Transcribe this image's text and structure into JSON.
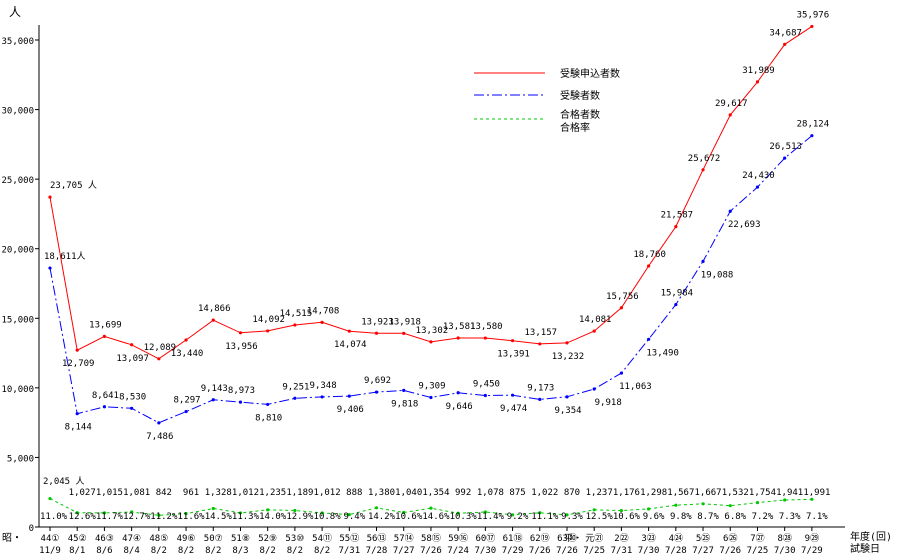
{
  "chart_data": {
    "type": "line",
    "title": "",
    "y_unit": "人",
    "ylim": [
      0,
      35000
    ],
    "yticks": [
      "0",
      "5,000",
      "10,000",
      "15,000",
      "20,000",
      "25,000",
      "30,000",
      "35,000"
    ],
    "ytick_values": [
      0,
      5000,
      10000,
      15000,
      20000,
      25000,
      30000,
      35000
    ],
    "xlabel_top": "年度(回)",
    "xlabel_bottom": "試験日",
    "era_showa": "昭・",
    "era_heisei": "平・",
    "years": [
      "44①",
      "45②",
      "46③",
      "47④",
      "48⑤",
      "49⑥",
      "50⑦",
      "51⑧",
      "52⑨",
      "53⑩",
      "54⑪",
      "55⑫",
      "56⑬",
      "57⑭",
      "58⑮",
      "59⑯",
      "60⑰",
      "61⑱",
      "62⑲",
      "63⑳",
      "元㉑",
      "2㉒",
      "3㉓",
      "4㉔",
      "5㉕",
      "6㉖",
      "7㉗",
      "8㉘",
      "9㉙"
    ],
    "dates": [
      "11/9",
      "8/1",
      "8/6",
      "8/4",
      "8/2",
      "8/2",
      "8/2",
      "8/3",
      "8/2",
      "8/2",
      "8/2",
      "7/31",
      "7/28",
      "7/27",
      "7/26",
      "7/24",
      "7/30",
      "7/29",
      "7/26",
      "7/26",
      "7/25",
      "7/31",
      "7/30",
      "7/28",
      "7/27",
      "7/26",
      "7/25",
      "7/30",
      "7/29"
    ],
    "legend": [
      "受験申込者数",
      "受験者数",
      "合格者数",
      "合格率"
    ],
    "colors": {
      "applicants": "#ff0000",
      "examinees": "#0000ff",
      "passers": "#00c800"
    },
    "series": [
      {
        "name": "受験申込者数",
        "values": [
          23705,
          12709,
          13699,
          13097,
          12089,
          13440,
          14866,
          13956,
          14092,
          14515,
          14708,
          14074,
          13923,
          13918,
          13302,
          13581,
          13580,
          13391,
          13157,
          13232,
          14081,
          15756,
          18760,
          21587,
          25672,
          29617,
          31989,
          34687,
          35976
        ],
        "labels": [
          "23,705 人",
          "12,709",
          "13,699",
          "13,097",
          "12,089",
          "13,440",
          "14,866",
          "13,956",
          "14,092",
          "14,515",
          "14,708",
          "14,074",
          "13,923",
          "13,918",
          "13,302",
          "13,581",
          "13,580",
          "13,391",
          "13,157",
          "13,232",
          "14,081",
          "15,756",
          "18,760",
          "21,587",
          "25,672",
          "29,617",
          "31,989",
          "34,687",
          "35,976"
        ]
      },
      {
        "name": "受験者数",
        "values": [
          18611,
          8144,
          8641,
          8530,
          7486,
          8297,
          9143,
          8973,
          8810,
          9251,
          9348,
          9406,
          9692,
          9818,
          9309,
          9646,
          9450,
          9474,
          9173,
          9354,
          9918,
          11063,
          13490,
          15984,
          19088,
          22693,
          24430,
          26513,
          28124
        ],
        "labels": [
          "18,611人",
          "8,144",
          "8,641",
          "8,530",
          "7,486",
          "8,297",
          "9,143",
          "8,973",
          "8,810",
          "9,251",
          "9,348",
          "9,406",
          "9,692",
          "9,818",
          "9,309",
          "9,646",
          "9,450",
          "9,474",
          "9,173",
          "9,354",
          "9,918",
          "11,063",
          "13,490",
          "15,984",
          "19,088",
          "22,693",
          "24,430",
          "26,513",
          "28,124"
        ]
      },
      {
        "name": "合格者数",
        "values": [
          2045,
          1027,
          1015,
          1081,
          842,
          961,
          1328,
          1012,
          1235,
          1189,
          1012,
          888,
          1380,
          1040,
          1354,
          992,
          1078,
          875,
          1022,
          870,
          1237,
          1176,
          1298,
          1567,
          1667,
          1532,
          1754,
          1941,
          1991
        ],
        "labels": [
          "2,045 人",
          "1,027",
          "1,015",
          "1,081",
          "842",
          "961",
          "1,328",
          "1,012",
          "1,235",
          "1,189",
          "1,012",
          "888",
          "1,380",
          "1,040",
          "1,354",
          "992",
          "1,078",
          "875",
          "1,022",
          "870",
          "1,237",
          "1,176",
          "1,298",
          "1,567",
          "1,667",
          "1,532",
          "1,754",
          "1,941",
          "1,991"
        ]
      },
      {
        "name": "合格率",
        "values": [
          11.0,
          12.6,
          11.7,
          12.7,
          11.2,
          11.6,
          14.5,
          11.3,
          14.0,
          12.9,
          10.8,
          9.4,
          14.2,
          10.6,
          14.6,
          10.3,
          11.4,
          9.2,
          11.1,
          9.3,
          12.5,
          10.6,
          9.6,
          9.8,
          8.7,
          6.8,
          7.2,
          7.3,
          7.1
        ],
        "labels": [
          "11.0%",
          "12.6%",
          "11.7%",
          "12.7%",
          "11.2%",
          "11.6%",
          "14.5%",
          "11.3%",
          "14.0%",
          "12.9%",
          "10.8%",
          "9.4%",
          "14.2%",
          "10.6%",
          "14.6%",
          "10.3%",
          "11.4%",
          "9.2%",
          "11.1%",
          "9.3%",
          "12.5%",
          "10.6%",
          "9.6%",
          "9.8%",
          "8.7%",
          "6.8%",
          "7.2%",
          "7.3%",
          "7.1%"
        ]
      }
    ],
    "grid": false,
    "legend_position": "top-right"
  }
}
